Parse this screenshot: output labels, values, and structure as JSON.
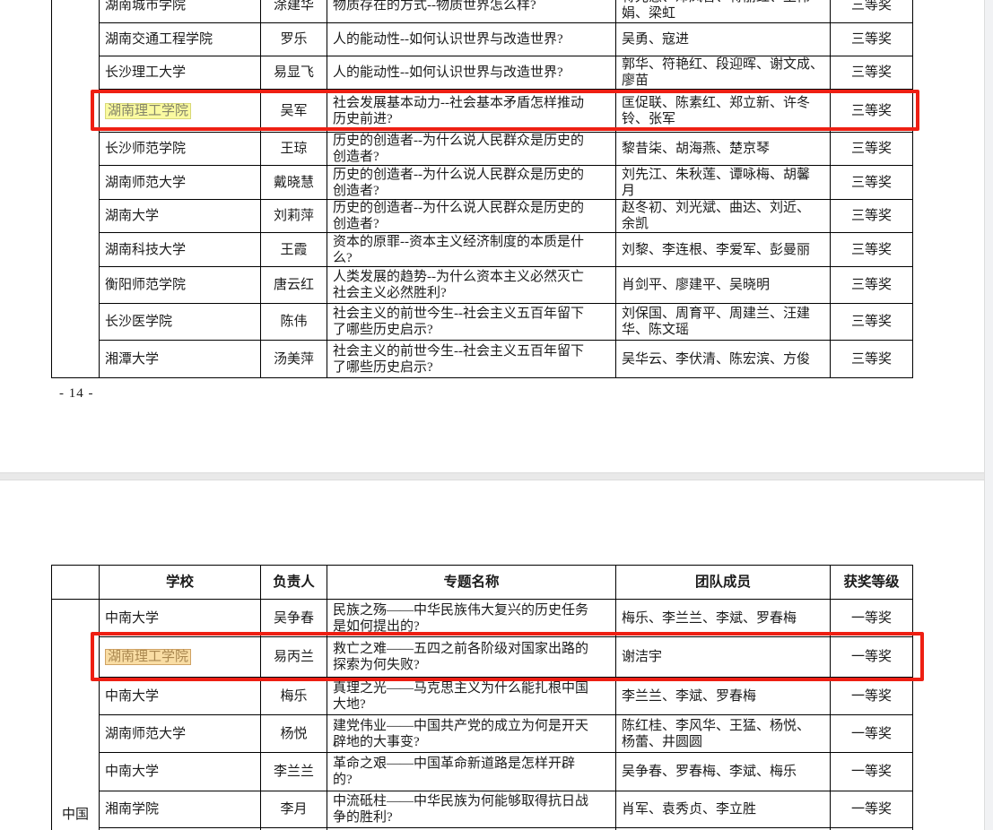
{
  "page1": {
    "rows": [
      {
        "school": "湖南城市学院",
        "person": "涂建华",
        "topic": "物质存在的方式--物质世界怎么样?",
        "team": "蒋光慧、邓凤香、蒋丽红、王伟\n娟、梁虹",
        "award": "三等奖",
        "school_highlight": null
      },
      {
        "school": "湖南交通工程学院",
        "person": "罗乐",
        "topic": "人的能动性--如何认识世界与改造世界?",
        "team": "吴勇、寇进",
        "award": "三等奖",
        "school_highlight": null
      },
      {
        "school": "长沙理工大学",
        "person": "易显飞",
        "topic": "人的能动性--如何认识世界与改造世界?",
        "team": "郭华、符艳红、段迎晖、谢文成、\n廖苗",
        "award": "三等奖",
        "school_highlight": null
      },
      {
        "school": "湖南理工学院",
        "person": "吴军",
        "topic": "社会发展基本动力--社会基本矛盾怎样推动\n历史前进?",
        "team": "匡促联、陈素红、郑立新、许冬\n铃、张军",
        "award": "三等奖",
        "school_highlight": "yellow"
      },
      {
        "school": "长沙师范学院",
        "person": "王琼",
        "topic": "历史的创造者--为什么说人民群众是历史的\n创造者?",
        "team": "黎昔柒、胡海燕、楚京琴",
        "award": "三等奖",
        "school_highlight": null
      },
      {
        "school": "湖南师范大学",
        "person": "戴晓慧",
        "topic": "历史的创造者--为什么说人民群众是历史的\n创造者?",
        "team": "刘先江、朱秋莲、谭咏梅、胡馨\n月",
        "award": "三等奖",
        "school_highlight": null
      },
      {
        "school": "湖南大学",
        "person": "刘莉萍",
        "topic": "历史的创造者--为什么说人民群众是历史的\n创造者?",
        "team": "赵冬初、刘光斌、曲达、刘近、\n余凯",
        "award": "三等奖",
        "school_highlight": null
      },
      {
        "school": "湖南科技大学",
        "person": "王霞",
        "topic": "资本的原罪--资本主义经济制度的本质是什\n么?",
        "team": "刘黎、李连根、李爱军、彭曼丽",
        "award": "三等奖",
        "school_highlight": null
      },
      {
        "school": "衡阳师范学院",
        "person": "唐云红",
        "topic": "人类发展的趋势--为什么资本主义必然灭亡\n社会主义必然胜利?",
        "team": "肖剑平、廖建平、吴晓明",
        "award": "三等奖",
        "school_highlight": null
      },
      {
        "school": "长沙医学院",
        "person": "陈伟",
        "topic": "社会主义的前世今生--社会主义五百年留下\n了哪些历史启示?",
        "team": "刘保国、周育平、周建兰、汪建\n华、陈文瑶",
        "award": "三等奖",
        "school_highlight": null
      },
      {
        "school": "湘潭大学",
        "person": "汤美萍",
        "topic": "社会主义的前世今生--社会主义五百年留下\n了哪些历史启示?",
        "team": "吴华云、李伏清、陈宏滨、方俊",
        "award": "三等奖",
        "school_highlight": null
      }
    ],
    "page_number": "- 14 -"
  },
  "page2": {
    "headers": {
      "school": "学校",
      "person": "负责人",
      "topic": "专题名称",
      "team": "团队成员",
      "award": "获奖等级"
    },
    "spine_label": "中国",
    "rows": [
      {
        "school": "中南大学",
        "person": "吴争春",
        "topic": "民族之殇——中华民族伟大复兴的历史任务\n是如何提出的?",
        "team": "梅乐、李兰兰、李斌、罗春梅",
        "award": "一等奖",
        "school_highlight": null
      },
      {
        "school": "湖南理工学院",
        "person": "易丙兰",
        "topic": "救亡之难——五四之前各阶级对国家出路的\n探索为何失败?",
        "team": "谢洁宇",
        "award": "一等奖",
        "school_highlight": "orange"
      },
      {
        "school": "中南大学",
        "person": "梅乐",
        "topic": "真理之光——马克思主义为什么能扎根中国\n大地?",
        "team": "李兰兰、李斌、罗春梅",
        "award": "一等奖",
        "school_highlight": null
      },
      {
        "school": "湖南师范大学",
        "person": "杨悦",
        "topic": "建党伟业——中国共产党的成立为何是开天\n辟地的大事变?",
        "team": "陈红桂、李风华、王猛、杨悦、\n杨蕾、井圆圆",
        "award": "一等奖",
        "school_highlight": null
      },
      {
        "school": "中南大学",
        "person": "李兰兰",
        "topic": "革命之艰——中国革命新道路是怎样开辟\n的?",
        "team": "吴争春、罗春梅、李斌、梅乐",
        "award": "一等奖",
        "school_highlight": null
      },
      {
        "school": "湘南学院",
        "person": "李月",
        "topic": "中流砥柱——中华民族为何能够取得抗日战\n争的胜利?",
        "team": "肖军、袁秀贞、李立胜",
        "award": "一等奖",
        "school_highlight": null
      },
      {
        "school": "",
        "person": "",
        "topic": "",
        "team": "",
        "award": "",
        "school_highlight": null
      }
    ]
  },
  "colors": {
    "annotation_red": "#ee1f13",
    "highlight_yellow_bg": "#fafaa0",
    "highlight_orange_bg": "#f9dda4",
    "page_gap_gray": "#e9e9e9"
  }
}
